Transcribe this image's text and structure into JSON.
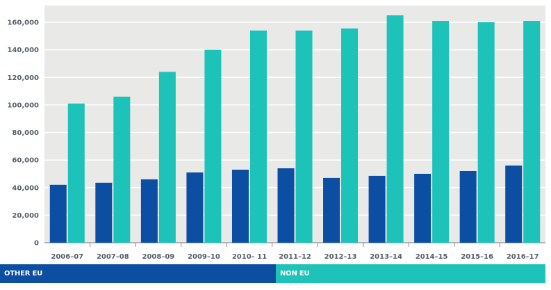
{
  "chart_data": {
    "type": "bar",
    "categories": [
      "2006–07",
      "2007–08",
      "2008–09",
      "2009–10",
      "2010– 11",
      "2011–12",
      "2012–13",
      "2013–14",
      "2014–15",
      "2015–16",
      "2016–17"
    ],
    "series": [
      {
        "name": "OTHER EU",
        "color": "#0b4ea2",
        "values": [
          42000,
          43500,
          46000,
          51000,
          53000,
          54000,
          47000,
          48500,
          50000,
          52000,
          56000
        ]
      },
      {
        "name": "NON EU",
        "color": "#1dc2b8",
        "values": [
          101000,
          106000,
          124000,
          140000,
          154000,
          154000,
          155500,
          165000,
          161000,
          160000,
          161000
        ]
      }
    ],
    "yticks": [
      "0",
      "20,000",
      "40,000",
      "60,000",
      "80,000",
      "100,000",
      "120,000",
      "140,000",
      "160,000"
    ],
    "ylim": [
      0,
      165000
    ],
    "grid": true,
    "legend_position": "bottom",
    "background": "#e9e9e8"
  }
}
